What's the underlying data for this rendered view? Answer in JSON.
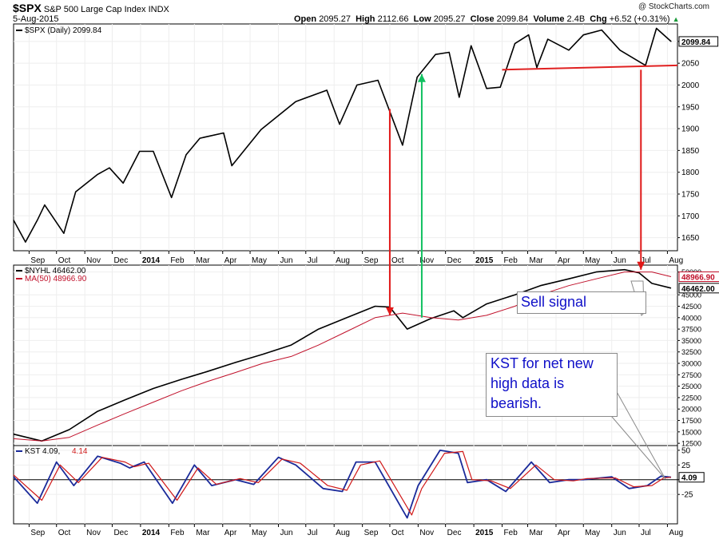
{
  "header": {
    "symbol": "$SPX",
    "name": "S&P 500 Large Cap Index",
    "exchange": "INDX",
    "date": "5-Aug-2015",
    "watermark": "@ StockCharts.com",
    "open_label": "Open",
    "open": "2095.27",
    "high_label": "High",
    "high": "2112.66",
    "low_label": "Low",
    "low": "2095.27",
    "close_label": "Close",
    "close": "2099.84",
    "volume_label": "Volume",
    "volume": "2.4B",
    "chg_label": "Chg",
    "chg": "+6.52 (+0.31%)",
    "chg_icon": "up-triangle-icon",
    "up_glyph": "▲"
  },
  "chart_data": [
    {
      "type": "line",
      "panel": "price",
      "legend": "$SPX (Daily) 2099.84",
      "last_value_label": "2099.84",
      "yticks": [
        "1650",
        "1700",
        "1750",
        "1800",
        "1850",
        "1900",
        "1950",
        "2000",
        "2050",
        "2100"
      ],
      "ylim": [
        1620,
        2140
      ],
      "x": [
        "2013-08-15",
        "2013-08-28",
        "2013-09-10",
        "2013-09-18",
        "2013-10-09",
        "2013-10-22",
        "2013-11-15",
        "2013-11-28",
        "2013-12-13",
        "2013-12-31",
        "2014-01-15",
        "2014-02-04",
        "2014-02-20",
        "2014-03-07",
        "2014-04-02",
        "2014-04-11",
        "2014-05-13",
        "2014-06-20",
        "2014-07-24",
        "2014-08-07",
        "2014-08-26",
        "2014-09-18",
        "2014-10-15",
        "2014-10-31",
        "2014-11-20",
        "2014-12-05",
        "2014-12-16",
        "2014-12-29",
        "2015-01-15",
        "2015-01-30",
        "2015-02-15",
        "2015-03-02",
        "2015-03-11",
        "2015-03-23",
        "2015-04-15",
        "2015-05-01",
        "2015-05-21",
        "2015-06-10",
        "2015-07-08",
        "2015-07-20",
        "2015-08-05"
      ],
      "y": [
        1690,
        1640,
        1690,
        1725,
        1660,
        1755,
        1795,
        1810,
        1775,
        1848,
        1848,
        1742,
        1840,
        1878,
        1890,
        1815,
        1898,
        1962,
        1988,
        1910,
        2000,
        2011,
        1862,
        2018,
        2070,
        2075,
        1972,
        2090,
        1992,
        1995,
        2095,
        2115,
        2040,
        2105,
        2080,
        2115,
        2126,
        2080,
        2045,
        2130,
        2099.84
      ]
    },
    {
      "type": "line",
      "panel": "breadth",
      "legend": "$NYHL 46462.00",
      "ma_legend": "MA(50) 48966.90",
      "last_value_label": "46462.00",
      "ma_last_value_label": "48966.90",
      "yticks": [
        "12500",
        "15000",
        "17500",
        "20000",
        "22500",
        "25000",
        "27500",
        "30000",
        "32500",
        "35000",
        "37500",
        "40000",
        "42500",
        "45000",
        "50000"
      ],
      "ylim": [
        12000,
        51500
      ],
      "series": [
        {
          "role": "indicator",
          "color": "#000000",
          "x": [
            "2013-08-15",
            "2013-09-15",
            "2013-10-15",
            "2013-11-15",
            "2013-12-15",
            "2014-01-15",
            "2014-02-15",
            "2014-03-15",
            "2014-04-15",
            "2014-05-15",
            "2014-06-15",
            "2014-07-15",
            "2014-08-15",
            "2014-09-15",
            "2014-10-01",
            "2014-10-20",
            "2014-11-15",
            "2014-12-10",
            "2014-12-20",
            "2015-01-15",
            "2015-02-15",
            "2015-03-15",
            "2015-04-15",
            "2015-05-15",
            "2015-06-15",
            "2015-07-01",
            "2015-07-15",
            "2015-08-05"
          ],
          "values": [
            14500,
            13000,
            15500,
            19500,
            22000,
            24500,
            26500,
            28200,
            30200,
            32000,
            34000,
            37500,
            40000,
            42500,
            42300,
            37500,
            39800,
            41500,
            40000,
            43000,
            45000,
            47000,
            48500,
            50000,
            50500,
            49800,
            47500,
            46462
          ]
        },
        {
          "role": "ma",
          "color": "#c0102a",
          "x": [
            "2013-08-15",
            "2013-09-15",
            "2013-10-15",
            "2013-11-15",
            "2013-12-15",
            "2014-01-15",
            "2014-02-15",
            "2014-03-15",
            "2014-04-15",
            "2014-05-15",
            "2014-06-15",
            "2014-07-15",
            "2014-08-15",
            "2014-09-15",
            "2014-10-15",
            "2014-11-15",
            "2014-12-15",
            "2015-01-15",
            "2015-02-15",
            "2015-03-15",
            "2015-04-15",
            "2015-05-15",
            "2015-06-15",
            "2015-07-15",
            "2015-08-05"
          ],
          "values": [
            13500,
            13000,
            13800,
            16500,
            19000,
            21500,
            24000,
            26000,
            28000,
            30000,
            31500,
            34000,
            37000,
            40000,
            41000,
            40000,
            39500,
            40500,
            42500,
            45000,
            47000,
            48500,
            50000,
            50000,
            48966.9
          ]
        }
      ]
    },
    {
      "type": "line",
      "panel": "kst",
      "legend_main": "KST 4.09,",
      "legend_signal": "4.14",
      "last_value_label": "4.09",
      "yticks": [
        "50",
        "25",
        "0",
        "-25"
      ],
      "ylim": [
        -75,
        58
      ],
      "series": [
        {
          "name": "KST",
          "color": "#1a2a9a",
          "x": [
            "2013-08-15",
            "2013-09-10",
            "2013-10-01",
            "2013-10-20",
            "2013-11-15",
            "2013-12-10",
            "2013-12-20",
            "2014-01-05",
            "2014-02-05",
            "2014-03-01",
            "2014-03-20",
            "2014-04-15",
            "2014-05-05",
            "2014-06-01",
            "2014-06-20",
            "2014-07-20",
            "2014-08-10",
            "2014-08-25",
            "2014-09-15",
            "2014-10-20",
            "2014-11-01",
            "2014-11-25",
            "2014-12-15",
            "2014-12-25",
            "2015-01-15",
            "2015-02-05",
            "2015-03-05",
            "2015-03-25",
            "2015-04-15",
            "2015-05-01",
            "2015-06-01",
            "2015-06-20",
            "2015-07-10",
            "2015-07-25",
            "2015-08-05"
          ],
          "values": [
            5,
            -40,
            30,
            -10,
            40,
            28,
            20,
            30,
            -40,
            25,
            -10,
            0,
            -8,
            38,
            25,
            -15,
            -20,
            30,
            30,
            -65,
            -10,
            50,
            45,
            -5,
            0,
            -20,
            30,
            -5,
            0,
            0,
            5,
            -15,
            -10,
            6,
            4.09
          ]
        },
        {
          "name": "Signal",
          "color": "#d01818",
          "x": [
            "2013-08-15",
            "2013-09-15",
            "2013-10-05",
            "2013-10-25",
            "2013-11-20",
            "2013-12-15",
            "2013-12-25",
            "2014-01-10",
            "2014-02-10",
            "2014-03-05",
            "2014-03-25",
            "2014-04-20",
            "2014-05-10",
            "2014-06-05",
            "2014-06-25",
            "2014-07-25",
            "2014-08-15",
            "2014-08-30",
            "2014-09-20",
            "2014-10-25",
            "2014-11-05",
            "2014-11-30",
            "2014-12-20",
            "2014-12-30",
            "2015-01-20",
            "2015-02-10",
            "2015-03-10",
            "2015-03-30",
            "2015-04-20",
            "2015-05-05",
            "2015-06-05",
            "2015-06-25",
            "2015-07-15",
            "2015-07-28",
            "2015-08-05"
          ],
          "values": [
            8,
            -35,
            25,
            -5,
            38,
            30,
            22,
            28,
            -35,
            20,
            -8,
            2,
            -5,
            35,
            28,
            -10,
            -18,
            25,
            32,
            -60,
            -15,
            45,
            48,
            0,
            -2,
            -15,
            25,
            0,
            -2,
            2,
            3,
            -12,
            -10,
            3,
            4.14
          ]
        }
      ]
    }
  ],
  "time_axis": {
    "labels": [
      "Sep",
      "Oct",
      "Nov",
      "Dec",
      "2014",
      "Feb",
      "Mar",
      "Apr",
      "May",
      "Jun",
      "Jul",
      "Aug",
      "Sep",
      "Oct",
      "Nov",
      "Dec",
      "2015",
      "Feb",
      "Mar",
      "Apr",
      "May",
      "Jun",
      "Jul",
      "Aug"
    ],
    "dates": [
      "2013-09-01",
      "2013-10-01",
      "2013-11-01",
      "2013-12-01",
      "2014-01-01",
      "2014-02-01",
      "2014-03-01",
      "2014-04-01",
      "2014-05-01",
      "2014-06-01",
      "2014-07-01",
      "2014-08-01",
      "2014-09-01",
      "2014-10-01",
      "2014-11-01",
      "2014-12-01",
      "2015-01-01",
      "2015-02-01",
      "2015-03-01",
      "2015-04-01",
      "2015-05-01",
      "2015-06-01",
      "2015-07-01",
      "2015-08-01"
    ],
    "bold": [
      "2014",
      "2015"
    ],
    "range": [
      "2013-08-15",
      "2015-08-12"
    ]
  },
  "annotations": {
    "sell_signal": "Sell signal",
    "kst_note_lines": [
      "KST for net new",
      "high data is",
      "bearish."
    ],
    "support_line": {
      "from": [
        "2015-02-01",
        2035
      ],
      "to": [
        "2015-08-12",
        2045
      ],
      "color": "#e02020"
    },
    "arrows": [
      {
        "kind": "down",
        "color": "#e01818",
        "date": "2014-10-01",
        "from": [
          "price",
          1945
        ],
        "to": [
          "breadth",
          40500
        ]
      },
      {
        "kind": "up",
        "color": "#10c060",
        "date": "2014-11-05",
        "from": [
          "breadth",
          40000
        ],
        "to": [
          "price",
          2025
        ]
      },
      {
        "kind": "down",
        "color": "#e01818",
        "date": "2015-07-03",
        "from": [
          "price",
          2035
        ],
        "to": [
          "breadth",
          50500
        ]
      }
    ]
  },
  "colors": {
    "price_line": "#000000",
    "ma_line": "#c0102a",
    "kst_line": "#1a2a9a",
    "signal_line": "#d01818",
    "arrow_red": "#e01818",
    "arrow_green": "#10c060",
    "callout_text": "#1010c8"
  }
}
